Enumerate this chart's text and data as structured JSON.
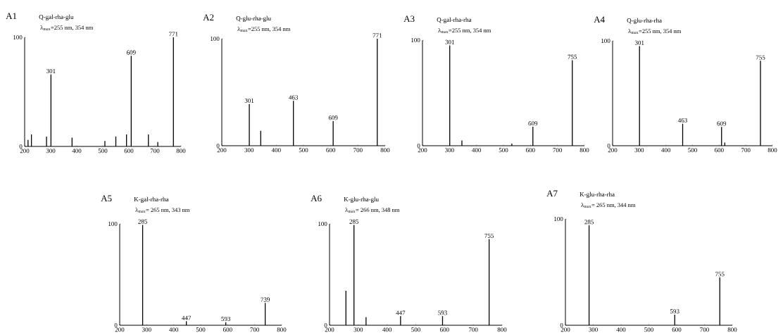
{
  "chart_data": [
    {
      "type": "bar",
      "title": "A1",
      "subtitle": "Q-gal-rha-glu",
      "color": "#000000",
      "xlim": [
        200,
        800
      ],
      "ylim": [
        0,
        100
      ],
      "xticks": [
        200,
        300,
        400,
        500,
        600,
        700,
        800
      ],
      "yticks": [
        0,
        100
      ],
      "x": [
        213,
        226,
        284,
        301,
        382,
        508,
        550,
        591,
        609,
        675,
        711,
        771
      ],
      "values": [
        6,
        11,
        9,
        66,
        8,
        5,
        9,
        11,
        83,
        11,
        4,
        100
      ],
      "annotations": [
        "λ$_{max}$=255 nm, 354 nm",
        {
          "text": "301",
          "x": 301,
          "y": 66
        },
        {
          "text": "609",
          "x": 609,
          "y": 83
        },
        {
          "text": "771",
          "x": 771,
          "y": 100
        }
      ]
    },
    {
      "type": "bar",
      "title": "A2",
      "subtitle": "Q-glu-rha-glu",
      "color": "#000000",
      "xlim": [
        200,
        800
      ],
      "ylim": [
        0,
        100
      ],
      "xticks": [
        200,
        300,
        400,
        500,
        600,
        700,
        800
      ],
      "yticks": [
        0,
        100
      ],
      "x": [
        301,
        343,
        463,
        609,
        771
      ],
      "values": [
        39,
        14,
        42,
        23,
        100
      ],
      "annotations": [
        "λ$_{max}$=255 nm, 354 nm",
        {
          "text": "301",
          "x": 301,
          "y": 39
        },
        {
          "text": "463",
          "x": 463,
          "y": 42
        },
        {
          "text": "609",
          "x": 609,
          "y": 23
        },
        {
          "text": "771",
          "x": 771,
          "y": 100
        }
      ]
    },
    {
      "type": "bar",
      "title": "A3",
      "subtitle": "Q-gal-rha-rha",
      "color": "#000000",
      "xlim": [
        200,
        800
      ],
      "ylim": [
        0,
        100
      ],
      "xticks": [
        200,
        300,
        400,
        500,
        600,
        700,
        800
      ],
      "yticks": [
        0,
        100
      ],
      "x": [
        301,
        346,
        531,
        609,
        755
      ],
      "values": [
        95,
        5,
        2,
        18,
        81
      ],
      "annotations": [
        "λ$_{max}$=255 nm, 354 nm",
        {
          "text": "301",
          "x": 301,
          "y": 95
        },
        {
          "text": "609",
          "x": 609,
          "y": 18
        },
        {
          "text": "755",
          "x": 755,
          "y": 81
        }
      ]
    },
    {
      "type": "bar",
      "title": "A4",
      "subtitle": "Q-glu-rha-rha",
      "color": "#000000",
      "xlim": [
        200,
        800
      ],
      "ylim": [
        0,
        100
      ],
      "xticks": [
        200,
        300,
        400,
        500,
        600,
        700,
        800
      ],
      "yticks": [
        0,
        100
      ],
      "x": [
        301,
        463,
        609,
        621,
        755
      ],
      "values": [
        95,
        21,
        18,
        3,
        81
      ],
      "annotations": [
        "λ$_{max}$=255 nm, 354 nm",
        {
          "text": "301",
          "x": 301,
          "y": 95
        },
        {
          "text": "463",
          "x": 463,
          "y": 21
        },
        {
          "text": "609",
          "x": 609,
          "y": 18
        },
        {
          "text": "755",
          "x": 755,
          "y": 81
        }
      ]
    },
    {
      "type": "bar",
      "title": "A5",
      "subtitle": "K-gal-rha-rha",
      "color": "#000000",
      "xlim": [
        200,
        800
      ],
      "ylim": [
        0,
        100
      ],
      "xticks": [
        200,
        300,
        400,
        500,
        600,
        700,
        800
      ],
      "yticks": [
        0,
        100
      ],
      "x": [
        285,
        447,
        593,
        739
      ],
      "values": [
        99,
        4,
        3,
        22
      ],
      "annotations": [
        "λ$_{max}$= 265 nm, 343 nm",
        {
          "text": "285",
          "x": 285,
          "y": 99
        },
        {
          "text": "447",
          "x": 447,
          "y": 4
        },
        {
          "text": "593",
          "x": 593,
          "y": 3
        },
        {
          "text": "739",
          "x": 739,
          "y": 22
        }
      ]
    },
    {
      "type": "bar",
      "title": "A6",
      "subtitle": "K-glu-rha-glu",
      "color": "#000000",
      "xlim": [
        200,
        800
      ],
      "ylim": [
        0,
        100
      ],
      "xticks": [
        200,
        300,
        400,
        500,
        600,
        700,
        800
      ],
      "yticks": [
        0,
        100
      ],
      "x": [
        257,
        285,
        327,
        447,
        593,
        755
      ],
      "values": [
        34,
        99,
        8,
        9,
        9,
        85
      ],
      "annotations": [
        "λ$_{max}$= 266 nm, 348 nm",
        {
          "text": "285",
          "x": 285,
          "y": 99
        },
        {
          "text": "447",
          "x": 447,
          "y": 9
        },
        {
          "text": "593",
          "x": 593,
          "y": 9
        },
        {
          "text": "755",
          "x": 755,
          "y": 85
        }
      ]
    },
    {
      "type": "bar",
      "title": "A7",
      "subtitle": "K-glu-rha-rha",
      "color": "#000000",
      "xlim": [
        200,
        800
      ],
      "ylim": [
        0,
        100
      ],
      "xticks": [
        200,
        300,
        400,
        500,
        600,
        700,
        800
      ],
      "yticks": [
        0,
        100
      ],
      "x": [
        285,
        593,
        755
      ],
      "values": [
        94,
        10,
        45
      ],
      "annotations": [
        "λ$_{max}$= 265 nm, 344 nm",
        {
          "text": "285",
          "x": 285,
          "y": 94
        },
        {
          "text": "593",
          "x": 593,
          "y": 10
        },
        {
          "text": "755",
          "x": 755,
          "y": 45
        }
      ]
    }
  ]
}
